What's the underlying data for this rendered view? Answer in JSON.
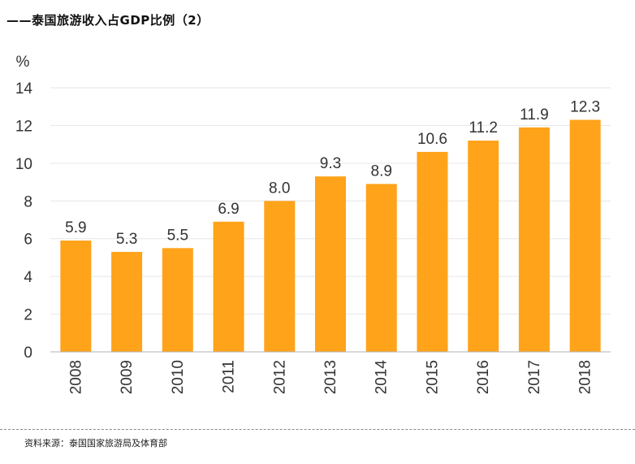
{
  "title": "——泰国旅游收入占GDP比例（2）",
  "source": "资料来源：泰国国家旅游局及体育部",
  "colors": {
    "bar": "#FFA31A",
    "grid": "#e6e6e6",
    "axis": "#b0b0b0",
    "text": "#333333"
  },
  "chart_data": {
    "type": "bar",
    "title": "——泰国旅游收入占GDP比例（2）",
    "xlabel": "",
    "ylabel": "%",
    "categories": [
      "2008",
      "2009",
      "2010",
      "2011",
      "2012",
      "2013",
      "2014",
      "2015",
      "2016",
      "2017",
      "2018"
    ],
    "values": [
      5.9,
      5.3,
      5.5,
      6.9,
      8.0,
      9.3,
      8.9,
      10.6,
      11.2,
      11.9,
      12.3
    ],
    "value_labels": [
      "5.9",
      "5.3",
      "5.5",
      "6.9",
      "8.0",
      "9.3",
      "8.9",
      "10.6",
      "11.2",
      "11.9",
      "12.3"
    ],
    "ylim": [
      0,
      14
    ],
    "yticks": [
      0,
      2,
      4,
      6,
      8,
      10,
      12,
      14
    ],
    "grid": true,
    "legend": "none"
  }
}
